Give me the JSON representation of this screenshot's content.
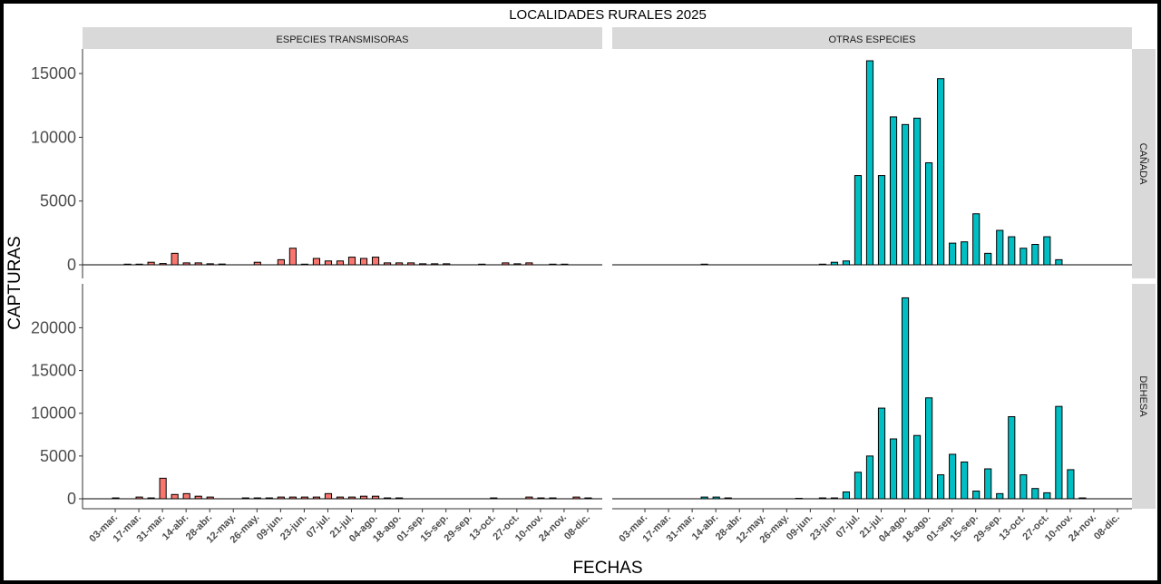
{
  "chart_data": {
    "type": "bar",
    "title": "LOCALIDADES RURALES 2025",
    "xlabel": "FECHAS",
    "ylabel": "CAPTURAS",
    "x_tick_labels": [
      "03-mar.",
      "17-mar.",
      "31-mar.",
      "14-abr.",
      "28-abr.",
      "12-may.",
      "26-may.",
      "09-jun.",
      "23-jun.",
      "07-jul.",
      "21-jul.",
      "04-ago.",
      "18-ago.",
      "01-sep.",
      "15-sep.",
      "29-sep.",
      "13-oct.",
      "27-oct.",
      "10-nov.",
      "24-nov.",
      "08-dic."
    ],
    "columns": [
      "ESPECIES TRANSMISORAS",
      "OTRAS ESPECIES"
    ],
    "rows": [
      "CAÑADA",
      "DEHESA"
    ],
    "colors": {
      "ESPECIES TRANSMISORAS": "#F8766D",
      "OTRAS ESPECIES": "#00BFC4"
    },
    "panels": [
      {
        "column": "ESPECIES TRANSMISORAS",
        "row": "CAÑADA",
        "ylim": [
          0,
          16500
        ],
        "yticks": [
          0,
          5000,
          10000,
          15000
        ],
        "values": [
          0,
          0,
          50,
          50,
          200,
          100,
          900,
          150,
          150,
          80,
          60,
          0,
          0,
          200,
          0,
          400,
          1300,
          50,
          500,
          300,
          300,
          600,
          500,
          600,
          150,
          150,
          150,
          80,
          80,
          80,
          0,
          0,
          50,
          0,
          150,
          80,
          150,
          0,
          50,
          50,
          0,
          0
        ]
      },
      {
        "column": "OTRAS ESPECIES",
        "row": "CAÑADA",
        "ylim": [
          0,
          16500
        ],
        "yticks": [
          0,
          5000,
          10000,
          15000
        ],
        "values": [
          0,
          0,
          0,
          0,
          0,
          0,
          50,
          0,
          0,
          0,
          0,
          0,
          0,
          0,
          0,
          0,
          50,
          200,
          300,
          7000,
          16000,
          7000,
          11600,
          11000,
          11500,
          8000,
          14600,
          1700,
          1800,
          4000,
          900,
          2700,
          2200,
          1300,
          1600,
          2200,
          400,
          0,
          0,
          0,
          0,
          0
        ]
      },
      {
        "column": "ESPECIES TRANSMISORAS",
        "row": "DEHESA",
        "ylim": [
          0,
          24500
        ],
        "yticks": [
          0,
          5000,
          10000,
          15000,
          20000
        ],
        "values": [
          0,
          100,
          0,
          200,
          100,
          2400,
          500,
          600,
          300,
          200,
          0,
          0,
          100,
          100,
          100,
          200,
          200,
          200,
          200,
          600,
          200,
          200,
          300,
          300,
          100,
          100,
          0,
          0,
          0,
          0,
          0,
          0,
          0,
          100,
          0,
          0,
          200,
          100,
          100,
          0,
          200,
          100
        ]
      },
      {
        "column": "OTRAS ESPECIES",
        "row": "DEHESA",
        "ylim": [
          0,
          24500
        ],
        "yticks": [
          0,
          5000,
          10000,
          15000,
          20000
        ],
        "values": [
          0,
          0,
          0,
          0,
          0,
          0,
          200,
          200,
          100,
          0,
          0,
          0,
          0,
          0,
          50,
          0,
          100,
          100,
          800,
          3100,
          5000,
          10600,
          7000,
          23500,
          7400,
          11800,
          2800,
          5200,
          4300,
          900,
          3500,
          600,
          9600,
          2800,
          1200,
          700,
          10800,
          3400,
          100,
          0,
          0,
          0
        ]
      }
    ],
    "grid": false,
    "legend": "none"
  }
}
